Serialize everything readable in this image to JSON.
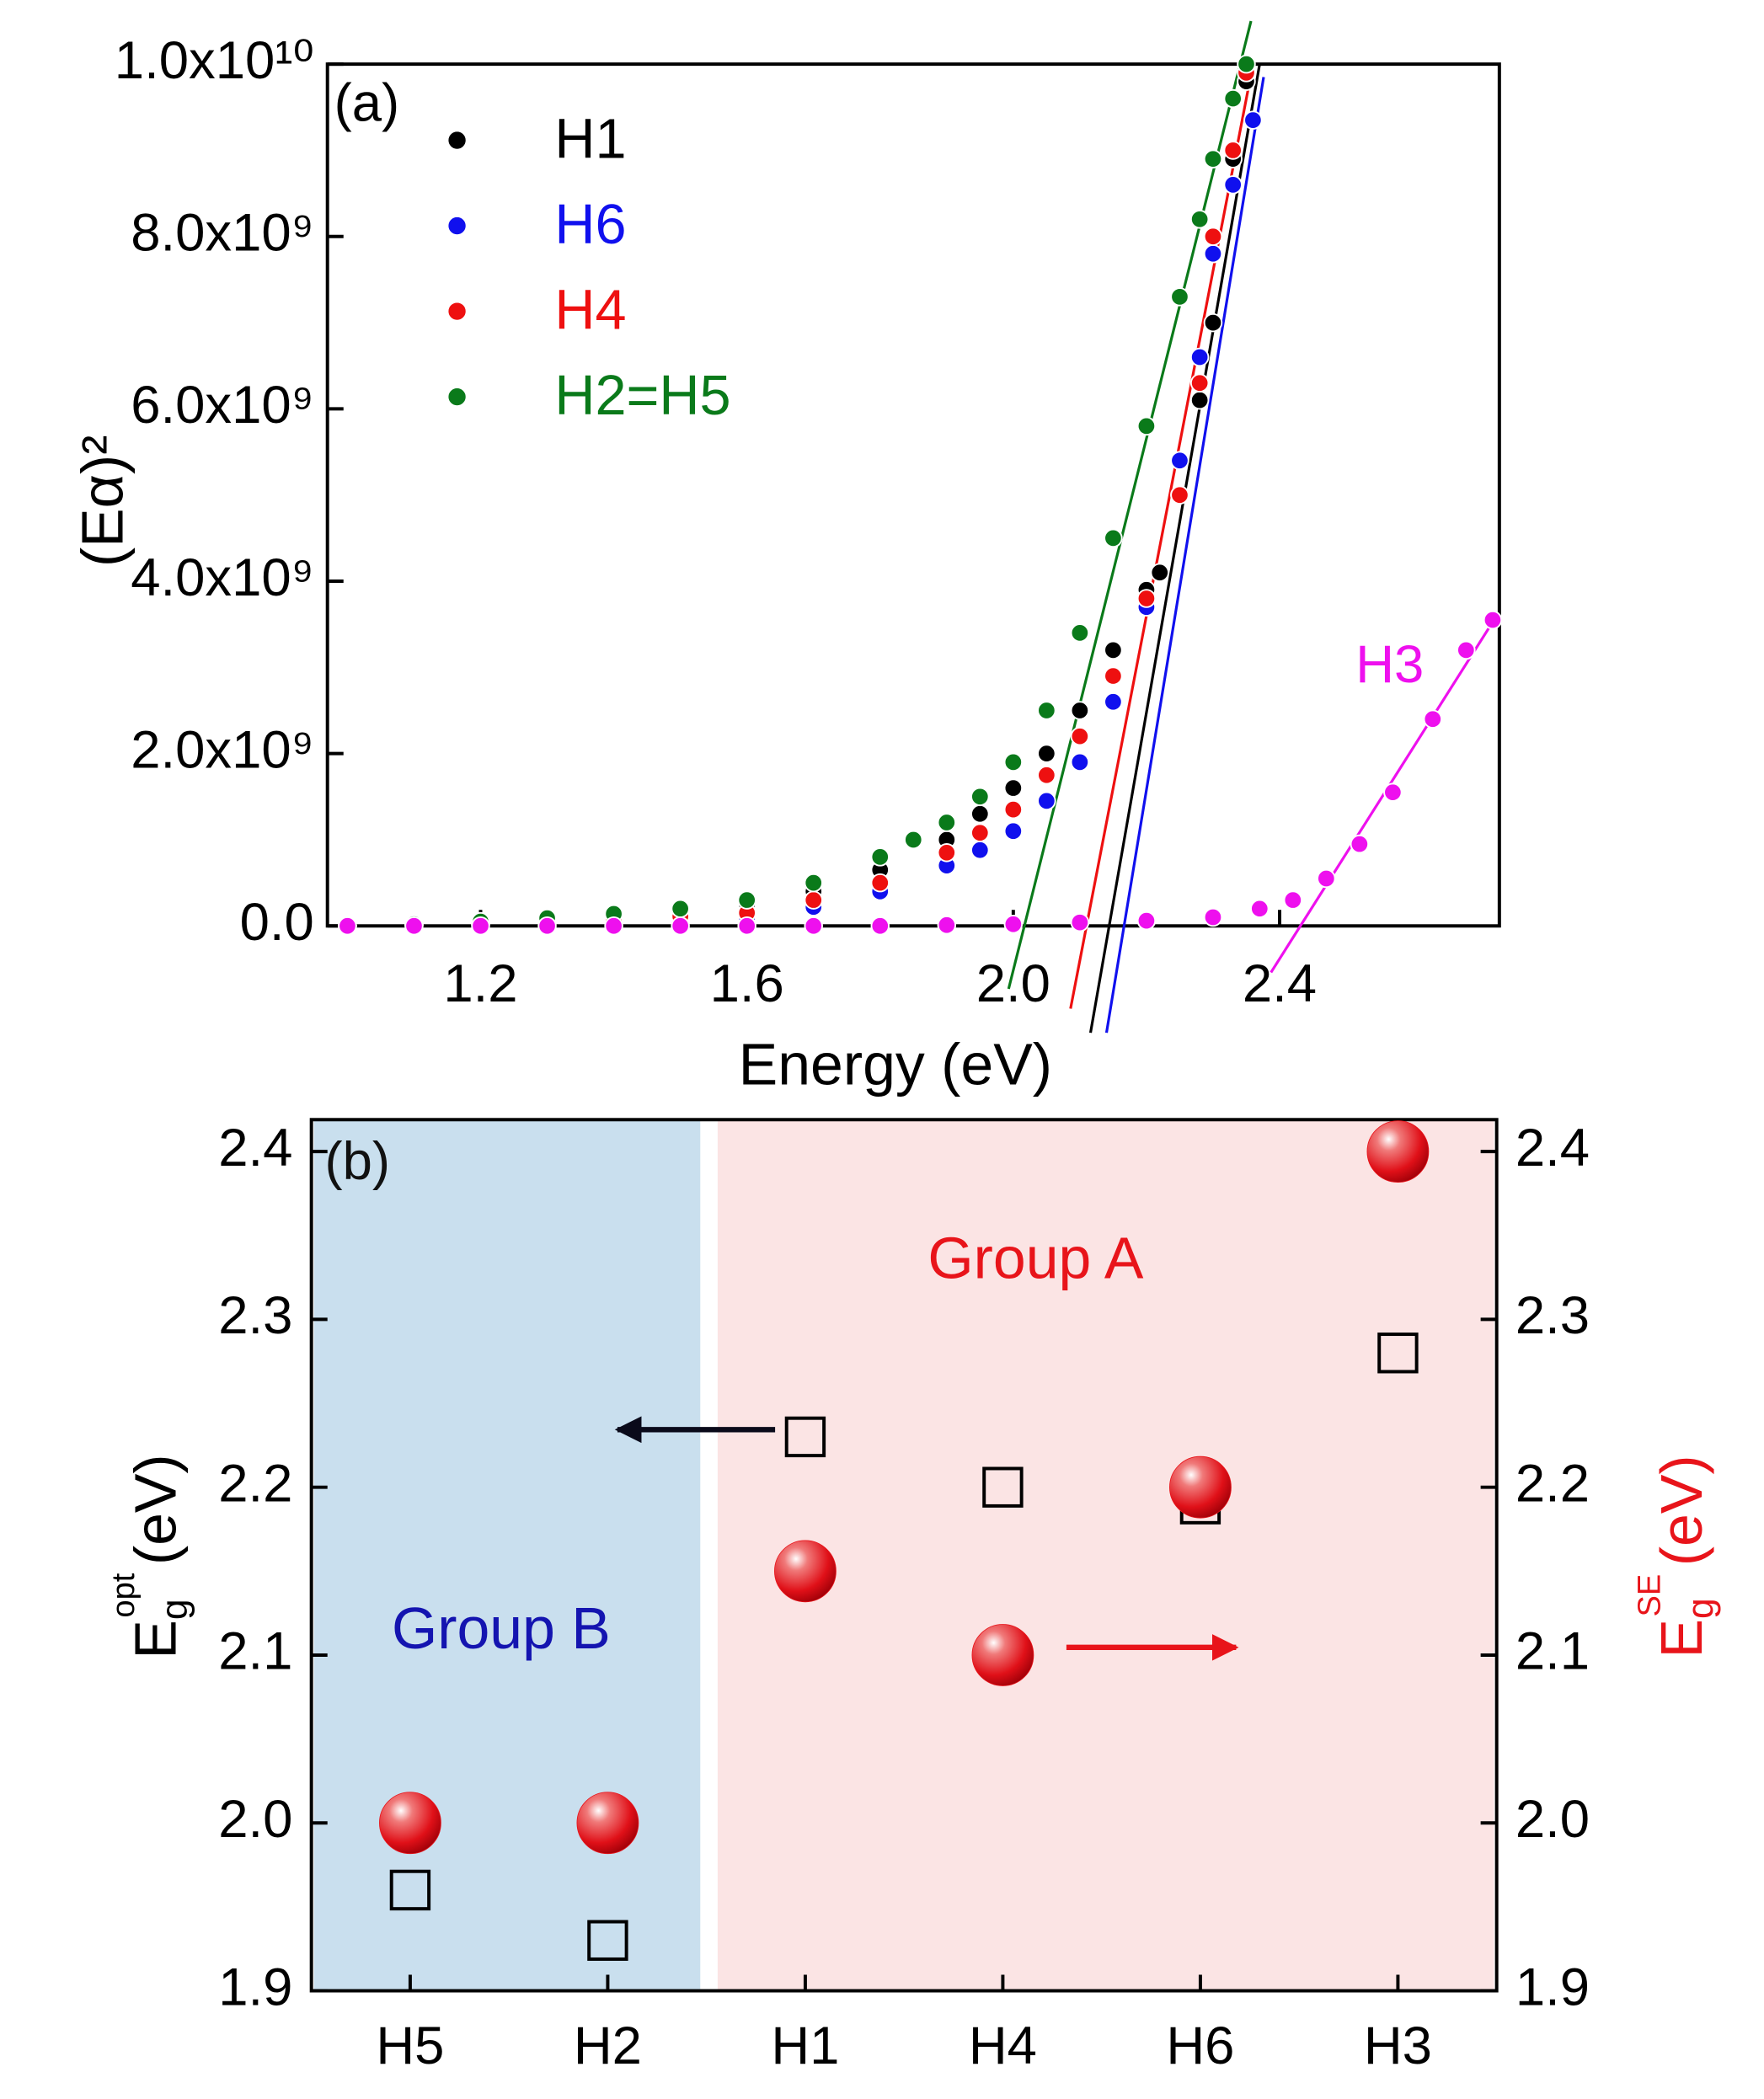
{
  "chart_data": [
    {
      "type": "scatter",
      "x_label": "Energy (eV)",
      "y_label": "(Eα)²",
      "annotations": [
        "(a)",
        "H3"
      ],
      "xlim": [
        0.97,
        2.73
      ],
      "xticks": [
        1.2,
        1.6,
        {
          "value": 2,
          "label": "2.0"
        },
        2.4
      ],
      "ylim": [
        0,
        10000000000.0
      ],
      "yticks": [
        {
          "value": 0,
          "label": "0.0"
        },
        {
          "value": 2000000000.0,
          "label": "2.0x10⁹"
        },
        {
          "value": 4000000000.0,
          "label": "4.0x10⁹"
        },
        {
          "value": 6000000000.0,
          "label": "6.0x10⁹"
        },
        {
          "value": 8000000000.0,
          "label": "8.0x10⁹"
        },
        {
          "value": 10000000000.0,
          "label": "1.0x10¹⁰"
        }
      ],
      "series": [
        {
          "name": "H1",
          "color": "#000000",
          "legend": true,
          "x": [
            1.0,
            1.1,
            1.2,
            1.3,
            1.4,
            1.5,
            1.6,
            1.7,
            1.8,
            1.9,
            1.95,
            2.0,
            2.05,
            2.1,
            2.15,
            2.2,
            2.22,
            2.25,
            2.28,
            2.3,
            2.33,
            2.35
          ],
          "values": [
            0,
            20000000.0,
            50000000.0,
            90000000.0,
            140000000.0,
            190000000.0,
            250000000.0,
            400000000.0,
            650000000.0,
            1000000000.0,
            1300000000.0,
            1600000000.0,
            2000000000.0,
            2500000000.0,
            3200000000.0,
            3900000000.0,
            4100000000.0,
            5000000000.0,
            6100000000.0,
            7000000000.0,
            8900000000.0,
            9800000000.0
          ]
        },
        {
          "name": "H6",
          "color": "#1010ee",
          "legend": true,
          "x": [
            1.0,
            1.1,
            1.2,
            1.3,
            1.4,
            1.5,
            1.6,
            1.7,
            1.8,
            1.9,
            1.95,
            2.0,
            2.05,
            2.1,
            2.15,
            2.2,
            2.25,
            2.28,
            2.3,
            2.33,
            2.36
          ],
          "values": [
            0,
            10000000.0,
            20000000.0,
            40000000.0,
            60000000.0,
            80000000.0,
            100000000.0,
            220000000.0,
            400000000.0,
            700000000.0,
            880000000.0,
            1100000000.0,
            1450000000.0,
            1900000000.0,
            2600000000.0,
            3700000000.0,
            5400000000.0,
            6600000000.0,
            7800000000.0,
            8600000000.0,
            9350000000.0
          ]
        },
        {
          "name": "H4",
          "color": "#ee1010",
          "legend": true,
          "x": [
            1.0,
            1.1,
            1.2,
            1.3,
            1.4,
            1.5,
            1.6,
            1.7,
            1.8,
            1.9,
            1.95,
            2.0,
            2.05,
            2.1,
            2.15,
            2.2,
            2.25,
            2.28,
            2.3,
            2.33,
            2.35
          ],
          "values": [
            0,
            10000000.0,
            30000000.0,
            50000000.0,
            80000000.0,
            110000000.0,
            150000000.0,
            300000000.0,
            500000000.0,
            850000000.0,
            1080000000.0,
            1350000000.0,
            1750000000.0,
            2200000000.0,
            2900000000.0,
            3800000000.0,
            5000000000.0,
            6300000000.0,
            8000000000.0,
            9000000000.0,
            9900000000.0
          ]
        },
        {
          "name": "H2=H5",
          "color": "#0a7a1a",
          "legend": true,
          "x": [
            1.0,
            1.1,
            1.2,
            1.3,
            1.4,
            1.5,
            1.6,
            1.7,
            1.8,
            1.85,
            1.9,
            1.95,
            2.0,
            2.05,
            2.1,
            2.15,
            2.2,
            2.25,
            2.28,
            2.3,
            2.33,
            2.35
          ],
          "values": [
            0,
            20000000.0,
            50000000.0,
            90000000.0,
            140000000.0,
            200000000.0,
            300000000.0,
            500000000.0,
            800000000.0,
            1000000000.0,
            1200000000.0,
            1500000000.0,
            1900000000.0,
            2500000000.0,
            3400000000.0,
            4500000000.0,
            5800000000.0,
            7300000000.0,
            8200000000.0,
            8900000000.0,
            9600000000.0,
            10000000000.0
          ]
        },
        {
          "name": "H3",
          "color": "#ee10ee",
          "legend": false,
          "x": [
            1.0,
            1.1,
            1.2,
            1.3,
            1.4,
            1.5,
            1.6,
            1.7,
            1.8,
            1.9,
            2.0,
            2.1,
            2.2,
            2.3,
            2.37,
            2.42,
            2.47,
            2.52,
            2.57,
            2.63,
            2.68,
            2.72
          ],
          "values": [
            0,
            0,
            0,
            0,
            0,
            0,
            0,
            0,
            0,
            10000000.0,
            20000000.0,
            40000000.0,
            60000000.0,
            100000000.0,
            200000000.0,
            300000000.0,
            550000000.0,
            950000000.0,
            1550000000.0,
            2400000000.0,
            3200000000.0,
            3550000000.0
          ]
        }
      ],
      "fit_lines": [
        {
          "color": "#0a7a1a",
          "x": [
            1.993,
            2.357
          ],
          "values": [
            -730000000.0,
            10500000000.0
          ]
        },
        {
          "color": "#ee1010",
          "x": [
            2.086,
            2.36
          ],
          "values": [
            -960000000.0,
            10000000000.0
          ]
        },
        {
          "color": "#000000",
          "x": [
            2.116,
            2.37
          ],
          "values": [
            -1240000000.0,
            10000000000.0
          ]
        },
        {
          "color": "#1010ee",
          "x": [
            2.14,
            2.376
          ],
          "values": [
            -1240000000.0,
            9850000000.0
          ]
        },
        {
          "color": "#ee10ee",
          "x": [
            2.387,
            2.726
          ],
          "values": [
            -540000000.0,
            3600000000.0
          ]
        }
      ]
    },
    {
      "type": "dot",
      "categories": [
        "H5",
        "H2",
        "H1",
        "H4",
        "H6",
        "H3"
      ],
      "ylim": [
        1.9,
        2.419
      ],
      "yticks": [
        1.9,
        {
          "value": 2,
          "label": "2.0"
        },
        2.1,
        2.2,
        2.3,
        2.4
      ],
      "y2lim": [
        1.9,
        2.419
      ],
      "y2ticks": [
        1.9,
        {
          "value": 2,
          "label": "2.0"
        },
        2.1,
        2.2,
        2.3,
        2.4
      ],
      "y_label": {
        "base": "E",
        "sub": "g",
        "sup": "opt",
        "unit": "(eV)"
      },
      "y2_label": {
        "base": "E",
        "sub": "g",
        "sup": "SE",
        "unit": "(eV)"
      },
      "annotations": [
        "(b)",
        "Group B",
        "Group A"
      ],
      "series": [
        {
          "color": "#000000",
          "marker": "square",
          "values": [
            1.96,
            1.93,
            2.23,
            2.2,
            2.19,
            2.28
          ]
        },
        {
          "color": "#e8141a",
          "marker": "sphere",
          "axis": "y2",
          "values": [
            2.0,
            2.0,
            2.15,
            2.1,
            2.2,
            2.4
          ]
        }
      ]
    }
  ]
}
